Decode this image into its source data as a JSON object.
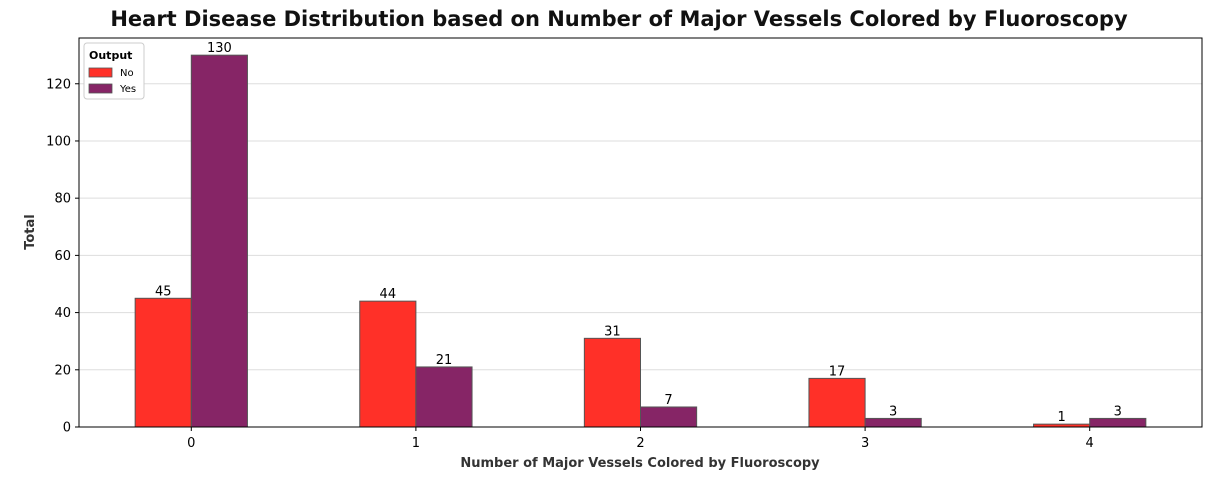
{
  "chart_data": {
    "type": "bar",
    "title": "Heart Disease Distribution based on Number of Major Vessels Colored by Fluoroscopy",
    "xlabel": "Number of Major Vessels Colored by Fluoroscopy",
    "ylabel": "Total",
    "categories": [
      "0",
      "1",
      "2",
      "3",
      "4"
    ],
    "series": [
      {
        "name": "No",
        "values": [
          45,
          44,
          31,
          17,
          1
        ],
        "color": "#FF3028"
      },
      {
        "name": "Yes",
        "values": [
          130,
          21,
          7,
          3,
          3
        ],
        "color": "#862566"
      }
    ],
    "ylim": [
      0,
      136
    ],
    "yticks": [
      0,
      20,
      40,
      60,
      80,
      100,
      120
    ],
    "grid": "horizontal",
    "legend": {
      "title": "Output",
      "position": "top-left"
    },
    "colors": {
      "bar_edge": "#555555",
      "grid": "#dddddd",
      "axis": "#000000"
    }
  }
}
